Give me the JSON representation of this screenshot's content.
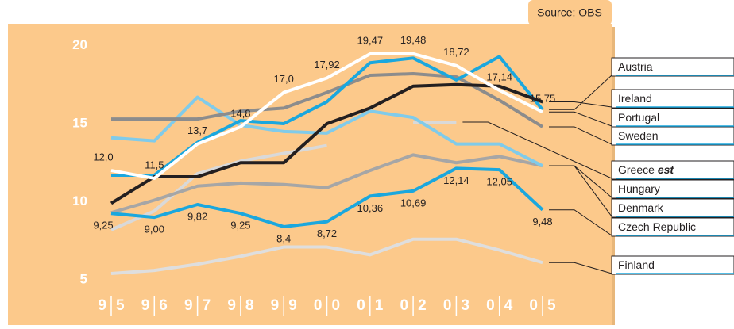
{
  "chart_data": {
    "type": "line",
    "source": "Source: OBS",
    "categories": [
      "95",
      "96",
      "97",
      "98",
      "99",
      "00",
      "01",
      "02",
      "03",
      "04",
      "05"
    ],
    "ylim": [
      2.1,
      21.4
    ],
    "yticks": [
      5,
      10,
      15,
      20
    ],
    "grid": false,
    "estimate_note": "est",
    "series": [
      {
        "name": "Finland",
        "color": "#dedede",
        "values": [
          5.4,
          5.6,
          6.0,
          6.5,
          7.1,
          7.1,
          6.6,
          7.6,
          7.6,
          6.9,
          6.1
        ]
      },
      {
        "name": "Greece",
        "color": "#d9d9d9",
        "values": [
          8.2,
          9.4,
          11.8,
          12.6,
          13.1,
          13.6,
          null,
          15.1,
          15.1,
          null,
          null
        ]
      },
      {
        "name": "Denmark",
        "color": "#a6a6a6",
        "values": [
          9.3,
          10.1,
          11.0,
          11.2,
          11.1,
          10.9,
          12.0,
          13.0,
          12.5,
          12.9,
          12.3
        ]
      },
      {
        "name": "Hungary",
        "color": "#80cbea",
        "values": [
          14.1,
          13.9,
          16.7,
          14.9,
          14.5,
          14.4,
          15.8,
          15.4,
          13.7,
          13.7,
          12.3
        ]
      },
      {
        "name": "Sweden",
        "color": "#8c8c8c",
        "values": [
          15.3,
          15.3,
          15.3,
          15.8,
          16.0,
          17.0,
          18.1,
          18.2,
          18.0,
          16.5,
          14.8
        ]
      },
      {
        "name": "Czech Republic",
        "color": "#1aa7de",
        "values": [
          9.25,
          9.0,
          9.82,
          9.25,
          8.4,
          8.72,
          10.36,
          10.69,
          12.14,
          12.05,
          9.48
        ],
        "value_labels": [
          "9,25",
          "9,00",
          "9,82",
          "9,25",
          "8,4",
          "8,72",
          "10,36",
          "10,69",
          "12,14",
          "12,05",
          "9,48"
        ]
      },
      {
        "name": "Austria",
        "color": "#1aa7de",
        "values": [
          11.7,
          11.7,
          13.8,
          15.2,
          15.0,
          16.4,
          18.9,
          19.2,
          17.8,
          19.3,
          15.9
        ]
      },
      {
        "name": "Ireland",
        "color": "#231f20",
        "values": [
          9.9,
          11.6,
          11.6,
          12.5,
          12.5,
          15.0,
          16.0,
          17.4,
          17.5,
          17.4,
          16.4
        ]
      },
      {
        "name": "Portugal",
        "color": "#ffffff",
        "values": [
          12.0,
          11.5,
          13.7,
          14.8,
          17.0,
          17.92,
          19.47,
          19.48,
          18.72,
          17.14,
          15.75
        ],
        "value_labels": [
          "12,0",
          "11,5",
          "13,7",
          "14,8",
          "17,0",
          "17,92",
          "19,47",
          "19,48",
          "18,72",
          "17,14",
          "15,75"
        ]
      }
    ]
  }
}
